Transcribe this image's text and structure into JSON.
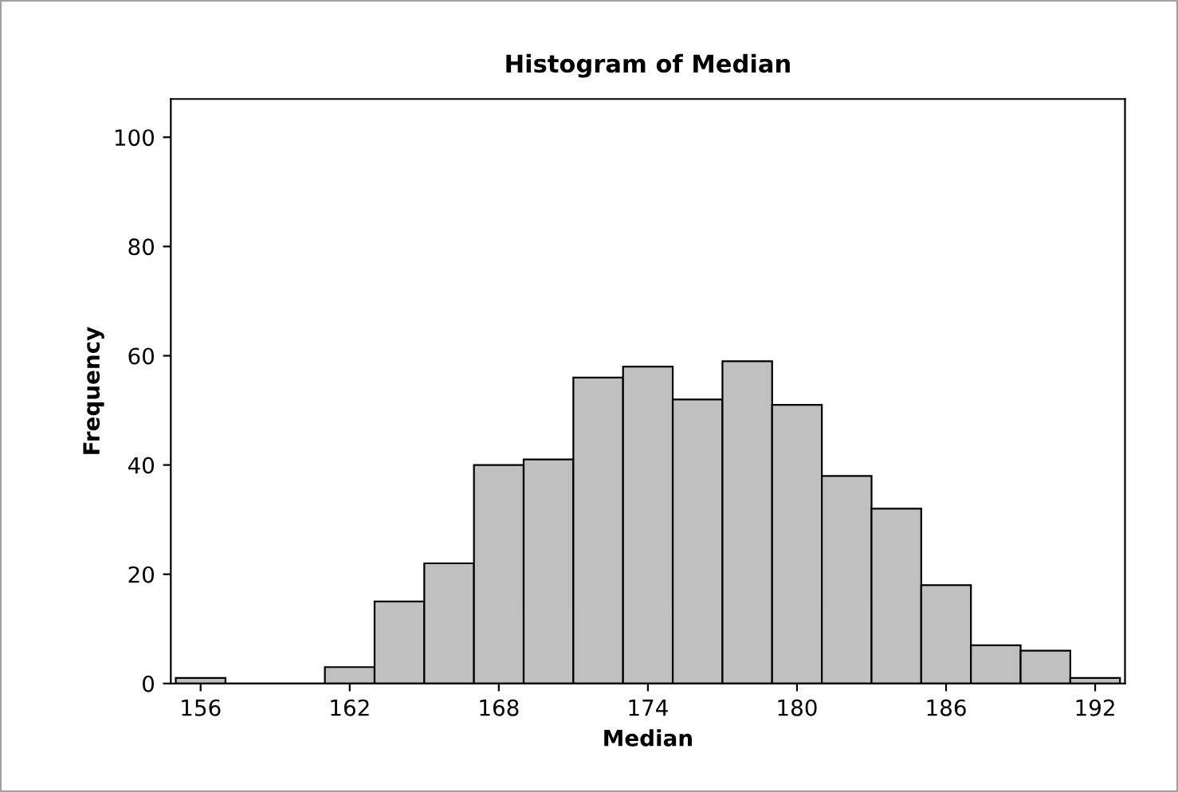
{
  "chart_data": {
    "type": "histogram",
    "title": "Histogram of Median",
    "xlabel": "Median",
    "ylabel": "Frequency",
    "bins": [
      155,
      157,
      159,
      161,
      163,
      165,
      167,
      169,
      171,
      173,
      175,
      177,
      179,
      181,
      183,
      185,
      187,
      189,
      191,
      193
    ],
    "values": [
      1,
      0,
      0,
      3,
      15,
      22,
      40,
      41,
      56,
      58,
      52,
      59,
      51,
      38,
      32,
      18,
      7,
      6,
      1
    ],
    "color": "#c0c0c0",
    "xlim": [
      154.8,
      193.2
    ],
    "xticks": [
      156,
      162,
      168,
      174,
      180,
      186,
      192
    ],
    "ylim": [
      0,
      107
    ],
    "yticks": [
      0,
      20,
      40,
      60,
      80,
      100
    ],
    "grid": false,
    "legend": false
  }
}
